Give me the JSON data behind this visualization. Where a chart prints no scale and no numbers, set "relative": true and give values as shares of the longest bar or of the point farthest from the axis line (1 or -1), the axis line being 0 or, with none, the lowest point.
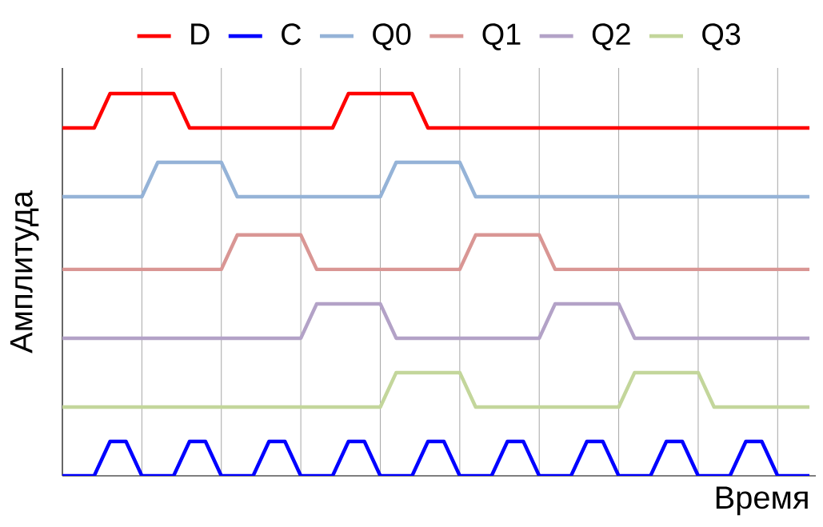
{
  "chart_data": {
    "type": "line",
    "relative": true,
    "xlabel": "Время",
    "ylabel": "Амплитуда",
    "legend": "top",
    "grid": "x",
    "line_style": "solid",
    "marker": "none",
    "categories": [
      null,
      null,
      null,
      null,
      null,
      null,
      null,
      null,
      null,
      null,
      null,
      null,
      null,
      null,
      null,
      null,
      null,
      null,
      null,
      null,
      null,
      null,
      null,
      null,
      null,
      null,
      null,
      null,
      null,
      null,
      null,
      null,
      null,
      null,
      null,
      null,
      null,
      null,
      null,
      null,
      null,
      null,
      null,
      null,
      null,
      null,
      null,
      null
    ],
    "series": [
      {
        "name": "D",
        "color": "#ff0000",
        "values": [
          0.91,
          0.91,
          0.91,
          1,
          1,
          1,
          1,
          1,
          0.91,
          0.91,
          0.91,
          0.91,
          0.91,
          0.91,
          0.91,
          0.91,
          0.91,
          0.91,
          1,
          1,
          1,
          1,
          1,
          0.91,
          0.91,
          0.91,
          0.91,
          0.91,
          0.91,
          0.91,
          0.91,
          0.91,
          0.91,
          0.91,
          0.91,
          0.91,
          0.91,
          0.91,
          0.91,
          0.91,
          0.91,
          0.91,
          0.91,
          0.91,
          0.91,
          0.91,
          0.91,
          0.91
        ]
      },
      {
        "name": "C",
        "color": "#0000ff",
        "values": [
          0,
          0,
          0,
          0.09,
          0.09,
          0,
          0,
          0,
          0.09,
          0.09,
          0,
          0,
          0,
          0.09,
          0.09,
          0,
          0,
          0,
          0.09,
          0.09,
          0,
          0,
          0,
          0.09,
          0.09,
          0,
          0,
          0,
          0.09,
          0.09,
          0,
          0,
          0,
          0.09,
          0.09,
          0,
          0,
          0,
          0.09,
          0.09,
          0,
          0,
          0,
          0.09,
          0.09,
          0,
          0,
          0
        ]
      },
      {
        "name": "Q0",
        "color": "#95b3d7",
        "values": [
          0.73,
          0.73,
          0.73,
          0.73,
          0.73,
          0.73,
          0.82,
          0.82,
          0.82,
          0.82,
          0.82,
          0.73,
          0.73,
          0.73,
          0.73,
          0.73,
          0.73,
          0.73,
          0.73,
          0.73,
          0.73,
          0.82,
          0.82,
          0.82,
          0.82,
          0.82,
          0.73,
          0.73,
          0.73,
          0.73,
          0.73,
          0.73,
          0.73,
          0.73,
          0.73,
          0.73,
          0.73,
          0.73,
          0.73,
          0.73,
          0.73,
          0.73,
          0.73,
          0.73,
          0.73,
          0.73,
          0.73,
          0.73
        ]
      },
      {
        "name": "Q1",
        "color": "#d99694",
        "values": [
          0.54,
          0.54,
          0.54,
          0.54,
          0.54,
          0.54,
          0.54,
          0.54,
          0.54,
          0.54,
          0.54,
          0.63,
          0.63,
          0.63,
          0.63,
          0.63,
          0.54,
          0.54,
          0.54,
          0.54,
          0.54,
          0.54,
          0.54,
          0.54,
          0.54,
          0.54,
          0.63,
          0.63,
          0.63,
          0.63,
          0.63,
          0.54,
          0.54,
          0.54,
          0.54,
          0.54,
          0.54,
          0.54,
          0.54,
          0.54,
          0.54,
          0.54,
          0.54,
          0.54,
          0.54,
          0.54,
          0.54,
          0.54
        ]
      },
      {
        "name": "Q2",
        "color": "#b3a2c7",
        "values": [
          0.36,
          0.36,
          0.36,
          0.36,
          0.36,
          0.36,
          0.36,
          0.36,
          0.36,
          0.36,
          0.36,
          0.36,
          0.36,
          0.36,
          0.36,
          0.36,
          0.45,
          0.45,
          0.45,
          0.45,
          0.45,
          0.36,
          0.36,
          0.36,
          0.36,
          0.36,
          0.36,
          0.36,
          0.36,
          0.36,
          0.36,
          0.45,
          0.45,
          0.45,
          0.45,
          0.45,
          0.36,
          0.36,
          0.36,
          0.36,
          0.36,
          0.36,
          0.36,
          0.36,
          0.36,
          0.36,
          0.36,
          0.36
        ]
      },
      {
        "name": "Q3",
        "color": "#c3d69b",
        "values": [
          0.18,
          0.18,
          0.18,
          0.18,
          0.18,
          0.18,
          0.18,
          0.18,
          0.18,
          0.18,
          0.18,
          0.18,
          0.18,
          0.18,
          0.18,
          0.18,
          0.18,
          0.18,
          0.18,
          0.18,
          0.18,
          0.27,
          0.27,
          0.27,
          0.27,
          0.27,
          0.18,
          0.18,
          0.18,
          0.18,
          0.18,
          0.18,
          0.18,
          0.18,
          0.18,
          0.18,
          0.27,
          0.27,
          0.27,
          0.27,
          0.27,
          0.18,
          0.18,
          0.18,
          0.18,
          0.18,
          0.18,
          0.18
        ]
      }
    ]
  }
}
